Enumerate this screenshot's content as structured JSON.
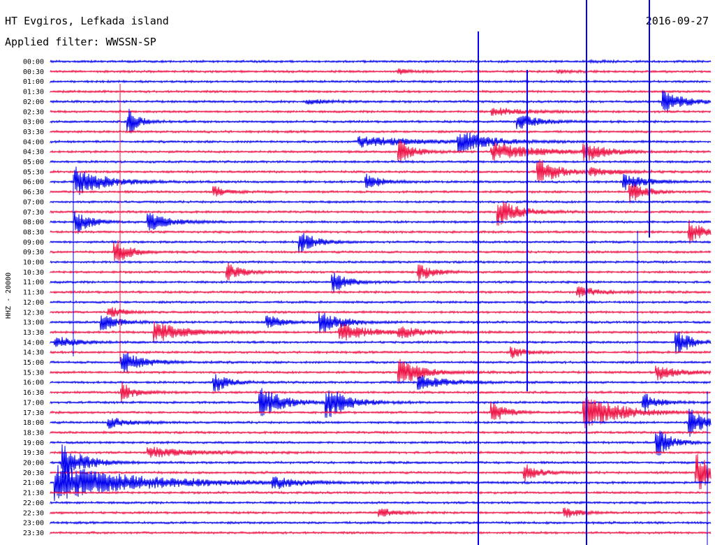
{
  "header": {
    "station": "HT Evgiros, Lefkada island",
    "date": "2016-09-27",
    "filter": "Applied filter: WWSSN-SP"
  },
  "chart_data": {
    "type": "helicorder",
    "ylabel": "HHZ - 20000",
    "rows": [
      "00:00",
      "00:30",
      "01:00",
      "01:30",
      "02:00",
      "02:30",
      "03:00",
      "03:30",
      "04:00",
      "04:30",
      "05:00",
      "05:30",
      "06:00",
      "06:30",
      "07:00",
      "07:30",
      "08:00",
      "08:30",
      "09:00",
      "09:30",
      "10:00",
      "10:30",
      "11:00",
      "11:30",
      "12:00",
      "12:30",
      "13:00",
      "13:30",
      "14:00",
      "14:30",
      "15:00",
      "15:30",
      "16:00",
      "16:30",
      "17:00",
      "17:30",
      "18:00",
      "18:30",
      "19:00",
      "19:30",
      "20:00",
      "20:30",
      "21:00",
      "21:30",
      "22:00",
      "22:30",
      "23:00",
      "23:30"
    ],
    "colors": {
      "even_rows": "#0000ee",
      "odd_rows": "#ee1144"
    },
    "minutes_per_row": 30,
    "events": [
      {
        "row": 0,
        "t": 0.82,
        "amp": 0.05,
        "dur": 0.02
      },
      {
        "row": 1,
        "t": 0.53,
        "amp": 0.12,
        "dur": 0.02
      },
      {
        "row": 1,
        "t": 0.77,
        "amp": 0.08,
        "dur": 0.02
      },
      {
        "row": 4,
        "t": 0.39,
        "amp": 0.15,
        "dur": 0.03
      },
      {
        "row": 4,
        "t": 0.93,
        "amp": 0.6,
        "dur": 0.03
      },
      {
        "row": 5,
        "t": 0.67,
        "amp": 0.2,
        "dur": 0.05
      },
      {
        "row": 6,
        "t": 0.12,
        "amp": 0.7,
        "dur": 0.015
      },
      {
        "row": 6,
        "t": 0.71,
        "amp": 0.4,
        "dur": 0.03
      },
      {
        "row": 8,
        "t": 0.47,
        "amp": 0.3,
        "dur": 0.08
      },
      {
        "row": 8,
        "t": 0.62,
        "amp": 0.6,
        "dur": 0.04
      },
      {
        "row": 9,
        "t": 0.53,
        "amp": 0.6,
        "dur": 0.02
      },
      {
        "row": 9,
        "t": 0.67,
        "amp": 0.5,
        "dur": 0.06
      },
      {
        "row": 9,
        "t": 0.81,
        "amp": 0.5,
        "dur": 0.03
      },
      {
        "row": 11,
        "t": 0.74,
        "amp": 0.7,
        "dur": 0.03
      },
      {
        "row": 11,
        "t": 0.82,
        "amp": 0.2,
        "dur": 0.04
      },
      {
        "row": 12,
        "t": 0.04,
        "amp": 0.8,
        "dur": 0.04
      },
      {
        "row": 12,
        "t": 0.48,
        "amp": 0.5,
        "dur": 0.02
      },
      {
        "row": 12,
        "t": 0.87,
        "amp": 0.4,
        "dur": 0.03
      },
      {
        "row": 13,
        "t": 0.88,
        "amp": 0.6,
        "dur": 0.02
      },
      {
        "row": 13,
        "t": 0.25,
        "amp": 0.3,
        "dur": 0.02
      },
      {
        "row": 15,
        "t": 0.68,
        "amp": 0.7,
        "dur": 0.03
      },
      {
        "row": 16,
        "t": 0.04,
        "amp": 0.7,
        "dur": 0.02
      },
      {
        "row": 16,
        "t": 0.15,
        "amp": 0.5,
        "dur": 0.03
      },
      {
        "row": 17,
        "t": 0.97,
        "amp": 0.6,
        "dur": 0.02
      },
      {
        "row": 18,
        "t": 0.38,
        "amp": 0.6,
        "dur": 0.02
      },
      {
        "row": 19,
        "t": 0.1,
        "amp": 0.7,
        "dur": 0.02
      },
      {
        "row": 21,
        "t": 0.27,
        "amp": 0.5,
        "dur": 0.02
      },
      {
        "row": 21,
        "t": 0.56,
        "amp": 0.5,
        "dur": 0.02
      },
      {
        "row": 22,
        "t": 0.43,
        "amp": 0.6,
        "dur": 0.02
      },
      {
        "row": 23,
        "t": 0.8,
        "amp": 0.3,
        "dur": 0.03
      },
      {
        "row": 25,
        "t": 0.09,
        "amp": 0.3,
        "dur": 0.02
      },
      {
        "row": 26,
        "t": 0.08,
        "amp": 0.5,
        "dur": 0.02
      },
      {
        "row": 26,
        "t": 0.33,
        "amp": 0.4,
        "dur": 0.02
      },
      {
        "row": 26,
        "t": 0.41,
        "amp": 0.6,
        "dur": 0.03
      },
      {
        "row": 27,
        "t": 0.16,
        "amp": 0.6,
        "dur": 0.04
      },
      {
        "row": 27,
        "t": 0.44,
        "amp": 0.5,
        "dur": 0.04
      },
      {
        "row": 27,
        "t": 0.53,
        "amp": 0.3,
        "dur": 0.03
      },
      {
        "row": 28,
        "t": 0.01,
        "amp": 0.3,
        "dur": 0.03
      },
      {
        "row": 28,
        "t": 0.95,
        "amp": 0.7,
        "dur": 0.02
      },
      {
        "row": 29,
        "t": 0.7,
        "amp": 0.3,
        "dur": 0.02
      },
      {
        "row": 30,
        "t": 0.11,
        "amp": 0.6,
        "dur": 0.03
      },
      {
        "row": 31,
        "t": 0.53,
        "amp": 0.8,
        "dur": 0.03
      },
      {
        "row": 31,
        "t": 0.92,
        "amp": 0.4,
        "dur": 0.03
      },
      {
        "row": 32,
        "t": 0.25,
        "amp": 0.5,
        "dur": 0.02
      },
      {
        "row": 32,
        "t": 0.56,
        "amp": 0.4,
        "dur": 0.04
      },
      {
        "row": 33,
        "t": 0.11,
        "amp": 0.5,
        "dur": 0.02
      },
      {
        "row": 34,
        "t": 0.32,
        "amp": 0.9,
        "dur": 0.03
      },
      {
        "row": 34,
        "t": 0.42,
        "amp": 0.9,
        "dur": 0.03
      },
      {
        "row": 34,
        "t": 0.9,
        "amp": 0.5,
        "dur": 0.02
      },
      {
        "row": 35,
        "t": 0.67,
        "amp": 0.6,
        "dur": 0.02
      },
      {
        "row": 35,
        "t": 0.81,
        "amp": 1.0,
        "dur": 0.05
      },
      {
        "row": 36,
        "t": 0.09,
        "amp": 0.3,
        "dur": 0.03
      },
      {
        "row": 36,
        "t": 0.97,
        "amp": 0.8,
        "dur": 0.02
      },
      {
        "row": 38,
        "t": 0.92,
        "amp": 0.8,
        "dur": 0.02
      },
      {
        "row": 39,
        "t": 0.15,
        "amp": 0.3,
        "dur": 0.06
      },
      {
        "row": 40,
        "t": 0.02,
        "amp": 1.0,
        "dur": 0.03
      },
      {
        "row": 41,
        "t": 0.98,
        "amp": 1.0,
        "dur": 0.04
      },
      {
        "row": 41,
        "t": 0.72,
        "amp": 0.5,
        "dur": 0.02
      },
      {
        "row": 42,
        "t": 0.01,
        "amp": 1.0,
        "dur": 0.12
      },
      {
        "row": 42,
        "t": 0.34,
        "amp": 0.3,
        "dur": 0.03
      },
      {
        "row": 45,
        "t": 0.5,
        "amp": 0.3,
        "dur": 0.02
      },
      {
        "row": 45,
        "t": 0.78,
        "amp": 0.3,
        "dur": 0.02
      }
    ]
  }
}
